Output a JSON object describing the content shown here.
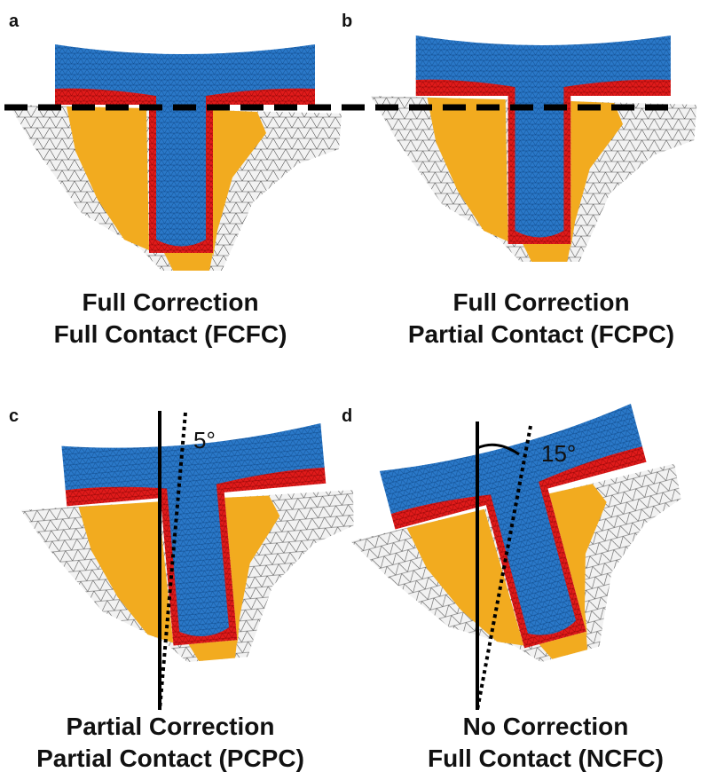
{
  "panels": [
    {
      "label": "a",
      "caption": [
        "Full Correction",
        "Full Contact (FCFC)"
      ]
    },
    {
      "label": "b",
      "caption": [
        "Full Correction",
        "Partial Contact (FCPC)"
      ]
    },
    {
      "label": "c",
      "caption": [
        "Partial Correction",
        "Partial Contact (PCPC)"
      ],
      "angle": "5°"
    },
    {
      "label": "d",
      "caption": [
        "No Correction",
        "Full Contact (NCFC)"
      ],
      "angle": "15°"
    }
  ]
}
